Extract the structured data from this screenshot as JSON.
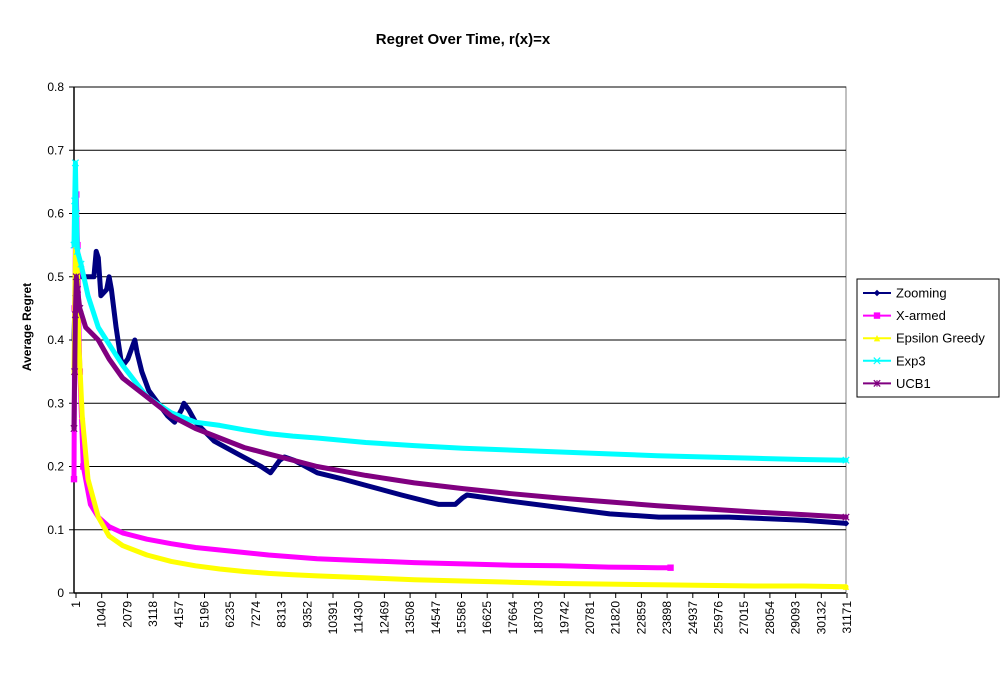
{
  "chart_data": {
    "type": "line",
    "title": "Regret Over Time, r(x)=x",
    "xlabel": "",
    "ylabel": "Average Regret",
    "xlim": [
      1,
      33000
    ],
    "ylim": [
      0,
      0.8
    ],
    "yticks": [
      "0",
      "0.1",
      "0.2",
      "0.3",
      "0.4",
      "0.5",
      "0.6",
      "0.7",
      "0.8"
    ],
    "xticks": [
      "1",
      "1040",
      "2079",
      "3118",
      "4157",
      "5196",
      "6235",
      "7274",
      "8313",
      "9352",
      "10391",
      "11430",
      "12469",
      "13508",
      "14547",
      "15586",
      "16625",
      "17664",
      "18703",
      "19742",
      "20781",
      "21820",
      "22859",
      "23898",
      "24937",
      "25976",
      "27015",
      "28054",
      "29093",
      "30132",
      "31171"
    ],
    "grid": "horizontal",
    "legend_position": "right",
    "series": [
      {
        "name": "Zooming",
        "color": "#000080",
        "marker": "diamond",
        "points": [
          [
            1,
            0.4
          ],
          [
            50,
            0.47
          ],
          [
            150,
            0.5
          ],
          [
            600,
            0.5
          ],
          [
            850,
            0.5
          ],
          [
            950,
            0.54
          ],
          [
            1040,
            0.53
          ],
          [
            1150,
            0.47
          ],
          [
            1400,
            0.48
          ],
          [
            1500,
            0.5
          ],
          [
            1600,
            0.48
          ],
          [
            1800,
            0.42
          ],
          [
            2000,
            0.37
          ],
          [
            2100,
            0.36
          ],
          [
            2300,
            0.37
          ],
          [
            2500,
            0.39
          ],
          [
            2600,
            0.4
          ],
          [
            2700,
            0.38
          ],
          [
            2900,
            0.35
          ],
          [
            3200,
            0.32
          ],
          [
            3600,
            0.3
          ],
          [
            4000,
            0.28
          ],
          [
            4300,
            0.27
          ],
          [
            4600,
            0.29
          ],
          [
            4700,
            0.3
          ],
          [
            4900,
            0.29
          ],
          [
            5200,
            0.27
          ],
          [
            6000,
            0.24
          ],
          [
            7000,
            0.22
          ],
          [
            8000,
            0.2
          ],
          [
            8400,
            0.19
          ],
          [
            8800,
            0.21
          ],
          [
            9000,
            0.215
          ],
          [
            9400,
            0.21
          ],
          [
            10400,
            0.19
          ],
          [
            11500,
            0.18
          ],
          [
            12500,
            0.17
          ],
          [
            14000,
            0.155
          ],
          [
            15600,
            0.14
          ],
          [
            16300,
            0.14
          ],
          [
            16600,
            0.15
          ],
          [
            16800,
            0.155
          ],
          [
            18700,
            0.145
          ],
          [
            20800,
            0.135
          ],
          [
            22900,
            0.125
          ],
          [
            25000,
            0.12
          ],
          [
            28000,
            0.12
          ],
          [
            31200,
            0.115
          ],
          [
            33000,
            0.11
          ]
        ]
      },
      {
        "name": "X-armed",
        "color": "#ff00ff",
        "marker": "square",
        "points": [
          [
            1,
            0.18
          ],
          [
            30,
            0.45
          ],
          [
            60,
            0.55
          ],
          [
            100,
            0.63
          ],
          [
            150,
            0.55
          ],
          [
            250,
            0.35
          ],
          [
            400,
            0.2
          ],
          [
            700,
            0.14
          ],
          [
            1040,
            0.12
          ],
          [
            1500,
            0.105
          ],
          [
            2079,
            0.095
          ],
          [
            3118,
            0.085
          ],
          [
            4157,
            0.078
          ],
          [
            5196,
            0.072
          ],
          [
            6235,
            0.068
          ],
          [
            7274,
            0.064
          ],
          [
            8313,
            0.06
          ],
          [
            9352,
            0.057
          ],
          [
            10391,
            0.054
          ],
          [
            12469,
            0.051
          ],
          [
            14547,
            0.048
          ],
          [
            16625,
            0.046
          ],
          [
            18703,
            0.044
          ],
          [
            20781,
            0.043
          ],
          [
            22859,
            0.041
          ],
          [
            24937,
            0.04
          ],
          [
            25500,
            0.04
          ]
        ]
      },
      {
        "name": "Epsilon Greedy",
        "color": "#ffff00",
        "marker": "triangle",
        "points": [
          [
            1,
            0.35
          ],
          [
            50,
            0.5
          ],
          [
            100,
            0.6
          ],
          [
            150,
            0.5
          ],
          [
            200,
            0.4
          ],
          [
            350,
            0.28
          ],
          [
            600,
            0.18
          ],
          [
            1040,
            0.12
          ],
          [
            1500,
            0.09
          ],
          [
            2079,
            0.075
          ],
          [
            3118,
            0.06
          ],
          [
            4157,
            0.05
          ],
          [
            5196,
            0.043
          ],
          [
            6235,
            0.038
          ],
          [
            7274,
            0.034
          ],
          [
            8313,
            0.031
          ],
          [
            9352,
            0.029
          ],
          [
            10391,
            0.027
          ],
          [
            12469,
            0.024
          ],
          [
            14547,
            0.021
          ],
          [
            16625,
            0.019
          ],
          [
            18703,
            0.017
          ],
          [
            20781,
            0.015
          ],
          [
            22859,
            0.014
          ],
          [
            24937,
            0.013
          ],
          [
            27015,
            0.012
          ],
          [
            29093,
            0.011
          ],
          [
            31171,
            0.011
          ],
          [
            33000,
            0.01
          ]
        ]
      },
      {
        "name": "Exp3",
        "color": "#00ffff",
        "marker": "x",
        "points": [
          [
            1,
            0.55
          ],
          [
            30,
            0.62
          ],
          [
            60,
            0.68
          ],
          [
            100,
            0.6
          ],
          [
            150,
            0.54
          ],
          [
            300,
            0.52
          ],
          [
            600,
            0.47
          ],
          [
            1040,
            0.42
          ],
          [
            2079,
            0.36
          ],
          [
            3118,
            0.31
          ],
          [
            4157,
            0.285
          ],
          [
            5196,
            0.27
          ],
          [
            6235,
            0.265
          ],
          [
            7274,
            0.258
          ],
          [
            8313,
            0.252
          ],
          [
            9352,
            0.248
          ],
          [
            10391,
            0.245
          ],
          [
            12469,
            0.238
          ],
          [
            14547,
            0.233
          ],
          [
            16625,
            0.229
          ],
          [
            18703,
            0.226
          ],
          [
            20781,
            0.223
          ],
          [
            22859,
            0.22
          ],
          [
            24937,
            0.217
          ],
          [
            27015,
            0.215
          ],
          [
            29093,
            0.213
          ],
          [
            31171,
            0.211
          ],
          [
            33000,
            0.21
          ]
        ]
      },
      {
        "name": "UCB1",
        "color": "#800080",
        "marker": "star",
        "points": [
          [
            1,
            0.26
          ],
          [
            30,
            0.35
          ],
          [
            60,
            0.44
          ],
          [
            100,
            0.5
          ],
          [
            150,
            0.48
          ],
          [
            250,
            0.45
          ],
          [
            500,
            0.42
          ],
          [
            1040,
            0.4
          ],
          [
            1500,
            0.37
          ],
          [
            2079,
            0.34
          ],
          [
            3118,
            0.31
          ],
          [
            4157,
            0.28
          ],
          [
            5196,
            0.26
          ],
          [
            6235,
            0.245
          ],
          [
            7274,
            0.23
          ],
          [
            8313,
            0.22
          ],
          [
            9352,
            0.21
          ],
          [
            10391,
            0.2
          ],
          [
            11430,
            0.193
          ],
          [
            12469,
            0.186
          ],
          [
            13508,
            0.18
          ],
          [
            14547,
            0.174
          ],
          [
            16625,
            0.165
          ],
          [
            18703,
            0.157
          ],
          [
            20781,
            0.15
          ],
          [
            22859,
            0.144
          ],
          [
            24937,
            0.138
          ],
          [
            27015,
            0.133
          ],
          [
            29093,
            0.128
          ],
          [
            31171,
            0.124
          ],
          [
            33000,
            0.12
          ]
        ]
      }
    ]
  }
}
